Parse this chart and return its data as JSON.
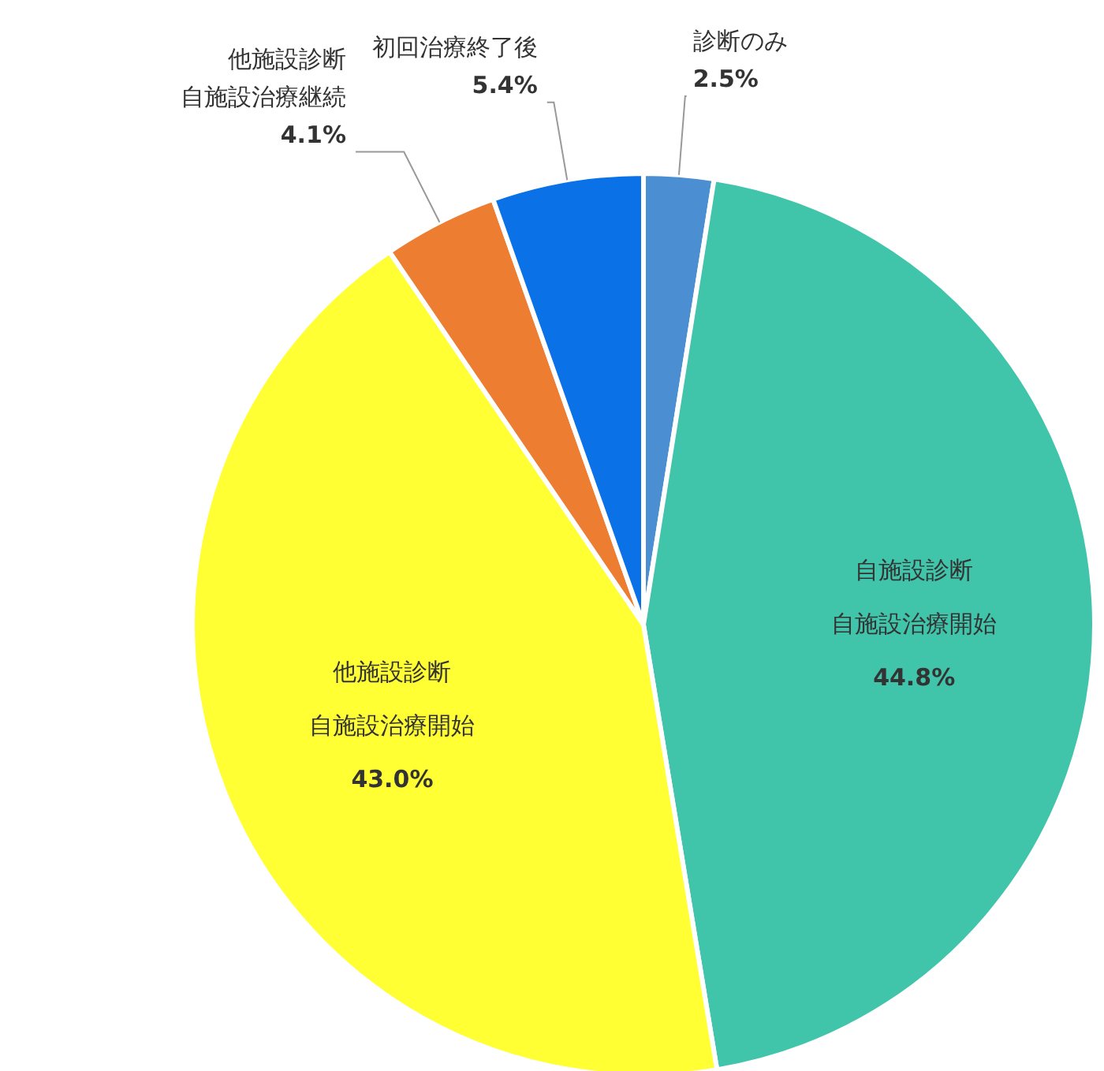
{
  "chart_data": {
    "type": "pie",
    "categories": [
      "診断のみ",
      "自施設診断自施設治療開始",
      "他施設診断自施設治療開始",
      "他施設診断自施設治療継続",
      "初回治療終了後"
    ],
    "values": [
      2.5,
      44.8,
      43.0,
      4.1,
      5.4
    ],
    "value_labels": [
      "2.5%",
      "44.8%",
      "43.0%",
      "4.1%",
      "5.4%"
    ],
    "colors": [
      "#4b8fd2",
      "#40c4aa",
      "#ffff33",
      "#ed7d31",
      "#0a72e6"
    ]
  }
}
